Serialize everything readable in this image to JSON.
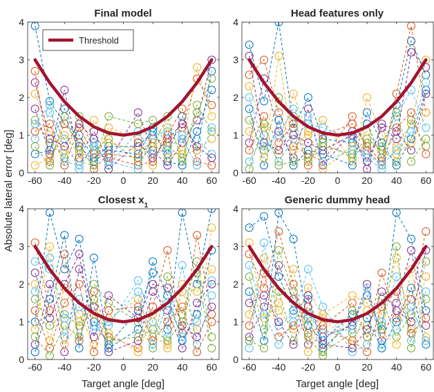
{
  "figure": {
    "ylabel": "Absolute lateral error [deg]",
    "xlabel": "Target angle [deg]"
  },
  "legend": {
    "label": "Threshold",
    "color": "#A2142F"
  },
  "colors": {
    "threshold": "#A2142F",
    "series_palette": [
      "#0072BD",
      "#D95319",
      "#EDB120",
      "#7E2F8E",
      "#77AC30",
      "#4DBEEE"
    ]
  },
  "chart_data": [
    {
      "type": "line",
      "title": "Final model",
      "xlim": [
        -65,
        65
      ],
      "ylim": [
        0,
        4
      ],
      "xticks": [
        -60,
        -40,
        -20,
        0,
        20,
        40,
        60
      ],
      "yticks": [
        0,
        1,
        2,
        3,
        4
      ],
      "markers": "circle",
      "linestyle": "dashed",
      "threshold": {
        "x": [
          -60,
          -50,
          -40,
          -30,
          -20,
          -10,
          0,
          10,
          20,
          30,
          40,
          50,
          60
        ],
        "y": [
          3.0,
          2.389,
          1.889,
          1.5,
          1.222,
          1.056,
          1.0,
          1.056,
          1.222,
          1.5,
          1.889,
          2.389,
          3.0
        ]
      },
      "x": [
        -60,
        -50,
        -40,
        -30,
        -20,
        -10,
        10,
        20,
        30,
        40,
        50,
        60
      ],
      "series": [
        {
          "values": [
            3.9,
            1.9,
            1.3,
            1.0,
            0.4,
            0.7,
            0.7,
            1.1,
            0.5,
            1.5,
            0.6,
            2.7
          ]
        },
        {
          "values": [
            2.7,
            0.3,
            1.3,
            0.8,
            0.1,
            0.5,
            0.4,
            0.9,
            0.8,
            1.2,
            2.5,
            1.8
          ]
        },
        {
          "values": [
            2.1,
            1.1,
            0.6,
            0.3,
            0.2,
            1.2,
            0.9,
            0.2,
            1.2,
            0.5,
            0.6,
            0.9
          ]
        },
        {
          "values": [
            1.7,
            0.5,
            2.2,
            0.4,
            1.1,
            0.3,
            1.6,
            0.6,
            0.2,
            0.8,
            1.4,
            3.0
          ]
        },
        {
          "values": [
            1.4,
            0.8,
            0.4,
            1.5,
            0.6,
            0.9,
            0.3,
            0.7,
            1.5,
            0.3,
            1.8,
            1.1
          ]
        },
        {
          "values": [
            0.9,
            1.6,
            0.9,
            0.1,
            0.8,
            0.2,
            1.1,
            0.5,
            0.6,
            1.0,
            0.9,
            0.5
          ]
        },
        {
          "values": [
            0.5,
            0.6,
            1.7,
            0.7,
            0.3,
            0.6,
            0.5,
            1.2,
            0.3,
            0.2,
            1.1,
            2.2
          ]
        },
        {
          "values": [
            1.1,
            1.3,
            0.2,
            1.2,
            0.5,
            0.4,
            0.2,
            0.3,
            1.0,
            1.7,
            0.3,
            0.2
          ]
        },
        {
          "values": [
            0.2,
            0.4,
            1.0,
            0.5,
            1.4,
            0.8,
            0.6,
            0.8,
            0.4,
            0.6,
            2.8,
            1.5
          ]
        },
        {
          "values": [
            2.4,
            0.9,
            0.7,
            1.3,
            0.9,
            0.1,
            0.8,
            0.4,
            0.9,
            1.3,
            0.7,
            0.4
          ]
        },
        {
          "values": [
            0.7,
            0.2,
            1.5,
            0.6,
            0.2,
            1.5,
            1.3,
            1.4,
            0.7,
            0.4,
            1.6,
            2.5
          ]
        },
        {
          "values": [
            1.3,
            1.8,
            0.3,
            0.2,
            0.7,
            0.3,
            0.1,
            1.0,
            1.1,
            0.9,
            0.2,
            1.2
          ]
        }
      ]
    },
    {
      "type": "line",
      "title": "Head features only",
      "xlim": [
        -65,
        65
      ],
      "ylim": [
        0,
        4
      ],
      "xticks": [
        -60,
        -40,
        -20,
        0,
        20,
        40,
        60
      ],
      "yticks": [
        0,
        1,
        2,
        3,
        4
      ],
      "markers": "circle",
      "linestyle": "dashed",
      "threshold": {
        "x": [
          -60,
          -50,
          -40,
          -30,
          -20,
          -10,
          0,
          10,
          20,
          30,
          40,
          50,
          60
        ],
        "y": [
          3.0,
          2.389,
          1.889,
          1.5,
          1.222,
          1.056,
          1.0,
          1.056,
          1.222,
          1.5,
          1.889,
          2.389,
          3.0
        ]
      },
      "x": [
        -60,
        -50,
        -40,
        -30,
        -20,
        -10,
        10,
        20,
        30,
        40,
        50,
        60
      ],
      "series": [
        {
          "values": [
            3.4,
            1.9,
            4.0,
            1.2,
            2.0,
            0.9,
            0.8,
            1.3,
            0.4,
            1.8,
            3.5,
            2.6
          ]
        },
        {
          "values": [
            2.6,
            3.0,
            1.6,
            0.7,
            0.5,
            0.3,
            1.5,
            0.6,
            0.2,
            2.1,
            3.9,
            1.6
          ]
        },
        {
          "values": [
            2.3,
            1.2,
            0.5,
            2.1,
            1.0,
            1.4,
            0.3,
            2.0,
            1.0,
            0.7,
            1.3,
            3.0
          ]
        },
        {
          "values": [
            0.8,
            2.5,
            1.1,
            0.4,
            1.7,
            0.2,
            1.1,
            0.1,
            1.3,
            1.1,
            0.6,
            2.1
          ]
        },
        {
          "values": [
            1.4,
            0.6,
            2.0,
            1.5,
            0.3,
            0.7,
            0.5,
            0.9,
            0.6,
            0.3,
            1.4,
            0.7
          ]
        },
        {
          "values": [
            0.3,
            1.0,
            0.3,
            0.9,
            1.3,
            1.2,
            0.9,
            0.4,
            0.1,
            1.5,
            2.2,
            1.2
          ]
        },
        {
          "values": [
            1.7,
            0.2,
            1.4,
            0.2,
            0.6,
            0.5,
            0.2,
            1.6,
            0.8,
            0.2,
            0.9,
            2.2
          ]
        },
        {
          "values": [
            0.6,
            1.5,
            0.8,
            1.3,
            0.2,
            1.0,
            1.3,
            0.7,
            0.3,
            1.2,
            1.6,
            0.5
          ]
        },
        {
          "values": [
            1.1,
            0.4,
            3.1,
            0.6,
            1.1,
            0.1,
            0.7,
            1.1,
            0.5,
            0.5,
            0.8,
            1.6
          ]
        },
        {
          "values": [
            3.1,
            0.8,
            0.6,
            1.0,
            0.8,
            0.6,
            1.0,
            0.3,
            1.2,
            0.9,
            3.2,
            2.8
          ]
        },
        {
          "values": [
            0.1,
            1.3,
            0.2,
            0.3,
            0.4,
            0.8,
            0.4,
            0.8,
            0.7,
            1.6,
            0.3,
            0.9
          ]
        },
        {
          "values": [
            2.0,
            0.7,
            1.0,
            1.7,
            1.5,
            0.3,
            0.6,
            0.5,
            0.2,
            0.6,
            1.1,
            2.4
          ]
        }
      ]
    },
    {
      "type": "line",
      "title": "Closest x",
      "title_subscript": "1",
      "xlim": [
        -65,
        65
      ],
      "ylim": [
        0,
        4
      ],
      "xticks": [
        -60,
        -40,
        -20,
        0,
        20,
        40,
        60
      ],
      "yticks": [
        0,
        1,
        2,
        3,
        4
      ],
      "markers": "circle",
      "linestyle": "dashed",
      "threshold": {
        "x": [
          -60,
          -50,
          -40,
          -30,
          -20,
          -10,
          0,
          10,
          20,
          30,
          40,
          50,
          60
        ],
        "y": [
          3.0,
          2.389,
          1.889,
          1.5,
          1.222,
          1.056,
          1.0,
          1.056,
          1.222,
          1.5,
          1.889,
          2.389,
          3.0
        ]
      },
      "x": [
        -60,
        -50,
        -40,
        -30,
        -20,
        -10,
        10,
        20,
        30,
        40,
        50,
        60
      ],
      "series": [
        {
          "values": [
            1.0,
            3.9,
            2.4,
            3.2,
            1.0,
            0.4,
            1.3,
            2.3,
            0.8,
            3.9,
            2.0,
            4.0
          ]
        },
        {
          "values": [
            3.1,
            1.3,
            2.8,
            0.5,
            1.8,
            0.6,
            0.3,
            1.4,
            2.9,
            0.7,
            3.3,
            1.2
          ]
        },
        {
          "values": [
            2.0,
            0.5,
            1.9,
            1.2,
            0.4,
            1.1,
            1.6,
            0.6,
            0.4,
            1.8,
            0.8,
            3.5
          ]
        },
        {
          "values": [
            0.4,
            2.0,
            0.2,
            2.4,
            1.4,
            0.2,
            0.5,
            1.8,
            1.3,
            0.3,
            1.5,
            2.0
          ]
        },
        {
          "values": [
            1.6,
            0.9,
            1.2,
            0.9,
            2.0,
            1.5,
            1.0,
            0.3,
            2.2,
            1.2,
            2.6,
            0.6
          ]
        },
        {
          "values": [
            2.6,
            2.4,
            0.6,
            1.6,
            0.8,
            0.9,
            2.1,
            1.0,
            0.6,
            2.5,
            0.4,
            1.7
          ]
        },
        {
          "values": [
            0.2,
            1.6,
            3.3,
            0.3,
            2.7,
            0.3,
            0.8,
            2.6,
            1.7,
            0.5,
            1.2,
            2.9
          ]
        },
        {
          "values": [
            1.3,
            0.3,
            1.5,
            2.0,
            0.2,
            1.3,
            1.4,
            0.5,
            1.0,
            1.4,
            0.2,
            1.0
          ]
        },
        {
          "values": [
            0.8,
            3.0,
            0.4,
            1.0,
            1.2,
            0.7,
            0.2,
            1.2,
            0.3,
            2.0,
            1.8,
            2.4
          ]
        },
        {
          "values": [
            2.3,
            1.1,
            2.0,
            2.8,
            0.6,
            1.7,
            1.1,
            2.0,
            1.9,
            0.9,
            0.6,
            1.4
          ]
        },
        {
          "values": [
            0.6,
            0.1,
            0.9,
            0.6,
            1.6,
            0.5,
            0.6,
            0.8,
            0.5,
            1.0,
            2.3,
            0.3
          ]
        },
        {
          "values": [
            1.8,
            2.7,
            1.1,
            1.4,
            0.9,
            1.0,
            1.8,
            0.4,
            1.5,
            0.6,
            1.0,
            2.1
          ]
        }
      ]
    },
    {
      "type": "line",
      "title": "Generic dummy head",
      "xlim": [
        -65,
        65
      ],
      "ylim": [
        0,
        4
      ],
      "xticks": [
        -60,
        -40,
        -20,
        0,
        20,
        40,
        60
      ],
      "yticks": [
        0,
        1,
        2,
        3,
        4
      ],
      "markers": "circle",
      "linestyle": "dashed",
      "threshold": {
        "x": [
          -60,
          -50,
          -40,
          -30,
          -20,
          -10,
          0,
          10,
          20,
          30,
          40,
          50,
          60
        ],
        "y": [
          3.0,
          2.389,
          1.889,
          1.5,
          1.222,
          1.056,
          1.0,
          1.056,
          1.222,
          1.5,
          1.889,
          2.389,
          3.0
        ]
      },
      "x": [
        -60,
        -50,
        -40,
        -30,
        -20,
        -10,
        10,
        20,
        30,
        40,
        50,
        60
      ],
      "series": [
        {
          "values": [
            3.5,
            3.8,
            2.2,
            1.3,
            1.6,
            0.3,
            1.0,
            1.7,
            0.8,
            3.9,
            3.2,
            1.3
          ]
        },
        {
          "values": [
            2.8,
            1.9,
            3.4,
            2.0,
            0.7,
            0.9,
            1.5,
            0.6,
            2.3,
            1.1,
            1.6,
            3.4
          ]
        },
        {
          "values": [
            1.2,
            2.7,
            1.3,
            0.8,
            1.9,
            1.1,
            0.4,
            1.3,
            1.2,
            2.7,
            0.8,
            2.2
          ]
        },
        {
          "values": [
            0.6,
            1.4,
            2.5,
            1.6,
            0.4,
            0.6,
            0.9,
            2.0,
            0.5,
            1.5,
            2.9,
            0.9
          ]
        },
        {
          "values": [
            2.2,
            0.8,
            1.8,
            0.5,
            1.1,
            0.2,
            0.7,
            0.9,
            1.6,
            0.6,
            1.2,
            2.6
          ]
        },
        {
          "values": [
            0.3,
            3.1,
            0.9,
            1.2,
            2.4,
            1.4,
            0.2,
            0.4,
            1.0,
            2.2,
            0.5,
            1.8
          ]
        },
        {
          "values": [
            1.8,
            0.5,
            3.9,
            3.2,
            0.9,
            0.5,
            1.2,
            1.1,
            0.3,
            1.0,
            1.9,
            0.4
          ]
        },
        {
          "values": [
            0.9,
            2.3,
            0.6,
            0.9,
            1.4,
            0.8,
            0.5,
            0.2,
            1.4,
            1.8,
            0.7,
            1.1
          ]
        },
        {
          "values": [
            3.1,
            1.1,
            1.5,
            2.4,
            0.2,
            1.2,
            1.7,
            1.5,
            0.7,
            0.4,
            2.4,
            0.6
          ]
        },
        {
          "values": [
            1.5,
            1.7,
            1.0,
            0.4,
            1.7,
            0.4,
            0.3,
            0.8,
            1.8,
            1.3,
            1.0,
            2.9
          ]
        },
        {
          "values": [
            0.5,
            0.3,
            2.9,
            1.8,
            0.6,
            0.1,
            1.3,
            0.6,
            0.9,
            3.0,
            0.3,
            1.6
          ]
        },
        {
          "values": [
            2.5,
            1.2,
            0.4,
            1.0,
            1.2,
            0.7,
            0.8,
            1.9,
            0.4,
            0.8,
            1.4,
            0.5
          ]
        }
      ]
    }
  ]
}
